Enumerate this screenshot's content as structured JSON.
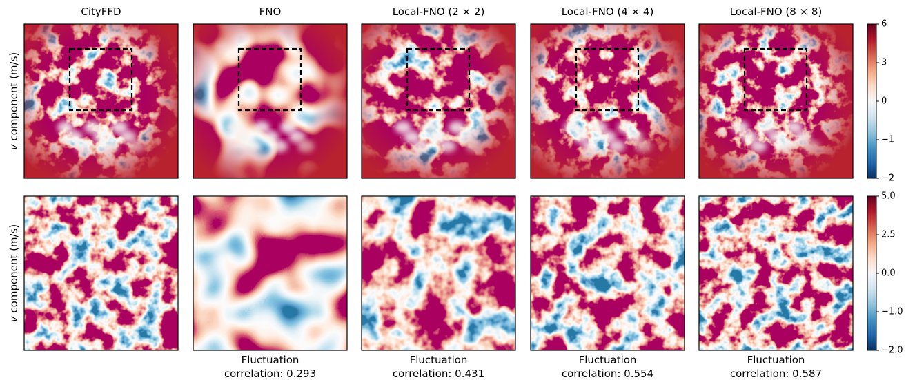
{
  "chart_data": {
    "type": "heatmap-grid",
    "columns": [
      "CityFFD",
      "FNO",
      "Local-FNO (2 × 2)",
      "Local-FNO (4 × 4)",
      "Local-FNO (8 × 8)"
    ],
    "rows": [
      {
        "ylabel": {
          "var": "v",
          "text": "component (m/s)"
        },
        "clim": [
          -2,
          6
        ],
        "center": 0,
        "cticks": [
          6,
          3,
          0,
          {
            "value": -1,
            "label": "−1"
          },
          {
            "value": -2,
            "label": "−2"
          }
        ]
      },
      {
        "ylabel": {
          "var": "v",
          "text": "component (m/s)"
        },
        "clim": [
          -2,
          5
        ],
        "center": 0,
        "cticks": [
          {
            "value": 5,
            "label": "5.0"
          },
          {
            "value": 2.5,
            "label": "2.5"
          },
          {
            "value": 0,
            "label": "0.0"
          },
          {
            "value": -1,
            "label": "−1.0"
          },
          {
            "value": -2,
            "label": "−2.0"
          }
        ]
      }
    ],
    "captions": [
      {
        "line1": "Fluctuation",
        "line2": "correlation: 0.293"
      },
      {
        "line1": "Fluctuation",
        "line2": "correlation: 0.431"
      },
      {
        "line1": "Fluctuation",
        "line2": "correlation: 0.554"
      },
      {
        "line1": "Fluctuation",
        "line2": "correlation: 0.587"
      }
    ]
  }
}
